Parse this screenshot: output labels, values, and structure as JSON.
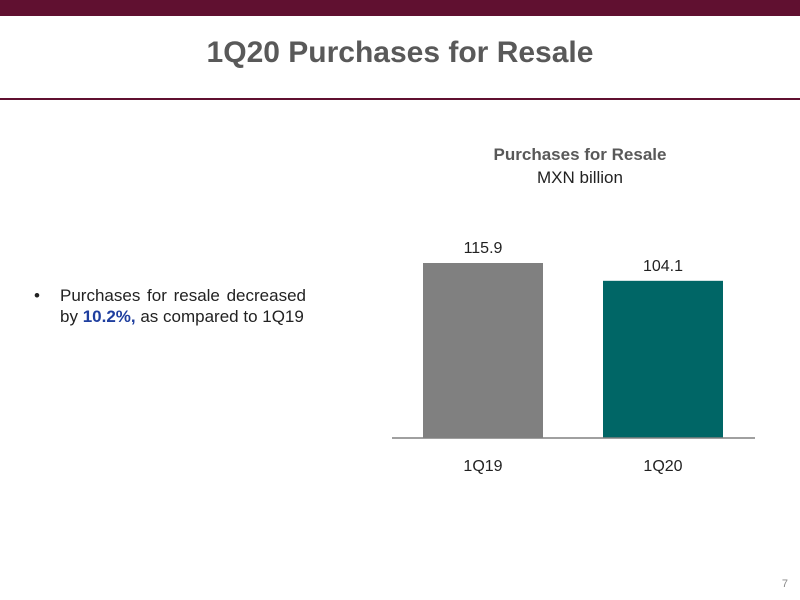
{
  "slide": {
    "title": "1Q20 Purchases for Resale",
    "page_number": "7",
    "bar_color_top": "#601030"
  },
  "bullet": {
    "dot": "•",
    "text_before": "Purchases for resale decreased by ",
    "highlight": "10.2%,",
    "text_after": " as compared to 1Q19",
    "highlight_color": "#1f3f9f"
  },
  "chart_data": {
    "type": "bar",
    "title": "Purchases for Resale",
    "subtitle": "MXN billion",
    "categories": [
      "1Q19",
      "1Q20"
    ],
    "values": [
      115.9,
      104.1
    ],
    "value_labels": [
      "115.9",
      "104.1"
    ],
    "colors": [
      "#808080",
      "#006666"
    ],
    "ylim": [
      0,
      115.9
    ],
    "grid": false,
    "legend": "none",
    "xlabel": "",
    "ylabel": ""
  }
}
